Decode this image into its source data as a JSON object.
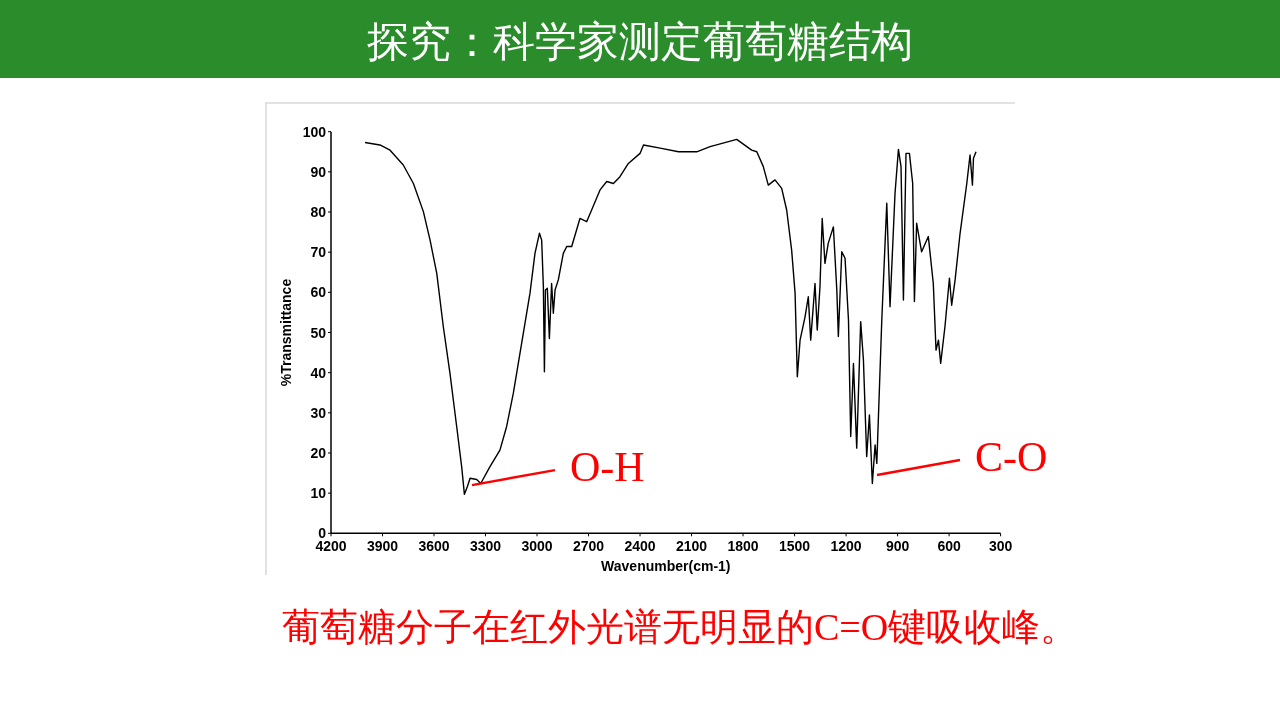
{
  "chart_data": {
    "type": "line",
    "title": "探究：科学家测定葡萄糖结构",
    "xlabel": "Wavenumber(cm-1)",
    "ylabel": "%Transmittance",
    "xlim": [
      4200,
      300
    ],
    "ylim": [
      0,
      100
    ],
    "xticks": [
      4200,
      3900,
      3600,
      3300,
      3000,
      2700,
      2400,
      2100,
      1800,
      1500,
      1200,
      900,
      600,
      300
    ],
    "yticks": [
      0,
      10,
      20,
      30,
      40,
      50,
      60,
      70,
      80,
      90,
      100
    ],
    "grid": false,
    "marker": "none",
    "line_style": "solid",
    "series": [
      {
        "color": "#000000",
        "x": [
          4002,
          3915,
          3856,
          3779,
          3720,
          3662,
          3623,
          3584,
          3546,
          3507,
          3468,
          3439,
          3423,
          3406,
          3390,
          3351,
          3328,
          3274,
          3216,
          3177,
          3138,
          3080,
          3041,
          3012,
          2986,
          2973,
          2963,
          2957,
          2951,
          2940,
          2928,
          2915,
          2905,
          2895,
          2876,
          2847,
          2827,
          2798,
          2750,
          2711,
          2682,
          2633,
          2594,
          2555,
          2517,
          2468,
          2400,
          2380,
          2283,
          2176,
          2070,
          1992,
          1837,
          1750,
          1720,
          1682,
          1653,
          1614,
          1575,
          1546,
          1517,
          1497,
          1484,
          1468,
          1439,
          1420,
          1406,
          1381,
          1368,
          1352,
          1339,
          1323,
          1304,
          1274,
          1254,
          1245,
          1225,
          1206,
          1186,
          1173,
          1157,
          1138,
          1115,
          1099,
          1080,
          1064,
          1047,
          1031,
          1021,
          992,
          963,
          944,
          915,
          895,
          880,
          866,
          851,
          831,
          812,
          802,
          789,
          760,
          721,
          692,
          676,
          662,
          649,
          624,
          598,
          585,
          565,
          536,
          497,
          478,
          464,
          458,
          443
        ],
        "values": [
          97.3,
          96.7,
          95.4,
          91.7,
          87.1,
          80.1,
          73.0,
          64.7,
          51.5,
          39.8,
          26.6,
          16.6,
          9.7,
          11.6,
          13.7,
          13.4,
          12.4,
          16.6,
          20.7,
          26.6,
          34.9,
          49.8,
          59.8,
          69.7,
          74.7,
          73.0,
          61.4,
          40.2,
          60.6,
          61.0,
          48.5,
          62.2,
          54.8,
          60.6,
          63.1,
          69.7,
          71.4,
          71.4,
          78.4,
          77.6,
          80.5,
          85.5,
          87.6,
          87.1,
          88.8,
          92.1,
          94.6,
          96.7,
          95.9,
          95.0,
          95.0,
          96.3,
          98.1,
          95.4,
          95.0,
          91.3,
          86.7,
          88.0,
          85.9,
          80.5,
          70.5,
          59.8,
          39.0,
          48.1,
          53.9,
          58.9,
          48.1,
          62.2,
          50.6,
          61.4,
          78.4,
          67.2,
          72.2,
          76.3,
          60.6,
          49.0,
          70.1,
          68.5,
          53.1,
          24.1,
          42.3,
          21.2,
          52.7,
          43.2,
          19.1,
          29.5,
          12.4,
          22.0,
          17.4,
          53.1,
          82.2,
          56.4,
          84.6,
          95.6,
          91.3,
          58.1,
          94.6,
          94.6,
          87.1,
          57.7,
          77.2,
          70.1,
          73.9,
          62.2,
          45.6,
          48.1,
          42.3,
          51.5,
          63.5,
          56.8,
          63.1,
          74.7,
          87.1,
          94.2,
          86.7,
          93.4,
          95.0
        ]
      }
    ],
    "annotations": [
      {
        "text": "O-H",
        "x": 3379,
        "y": 12.0
      },
      {
        "text": "C-O",
        "x": 1020,
        "y": 14.5
      },
      "葡萄糖分子在红外光谱无明显的C=O键吸收峰。"
    ]
  }
}
